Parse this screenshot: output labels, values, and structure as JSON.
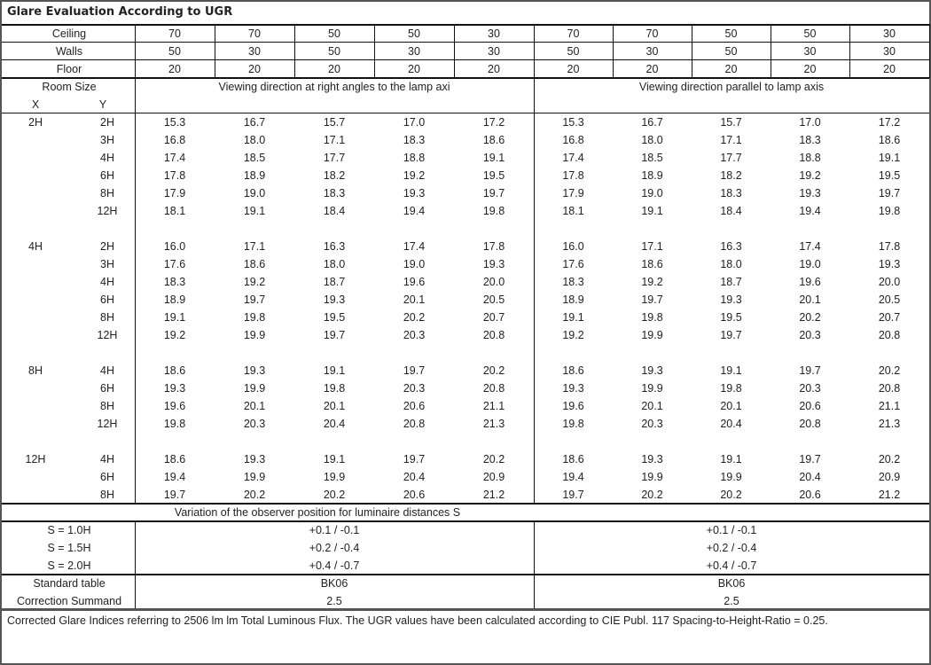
{
  "title": "Glare Evaluation According to UGR",
  "reflectances": [
    {
      "label": "Ceiling",
      "values": [
        "70",
        "70",
        "50",
        "50",
        "30",
        "70",
        "70",
        "50",
        "50",
        "30"
      ]
    },
    {
      "label": "Walls",
      "values": [
        "50",
        "30",
        "50",
        "30",
        "30",
        "50",
        "30",
        "50",
        "30",
        "30"
      ]
    },
    {
      "label": "Floor",
      "values": [
        "20",
        "20",
        "20",
        "20",
        "20",
        "20",
        "20",
        "20",
        "20",
        "20"
      ]
    }
  ],
  "header": {
    "room_size": "Room Size",
    "x": "X",
    "y": "Y",
    "direction_right_angles": "Viewing direction at right angles to the lamp axi",
    "direction_parallel": "Viewing direction parallel to lamp axis"
  },
  "groups": [
    {
      "x": "2H",
      "rows": [
        {
          "y": "2H",
          "values": [
            "15.3",
            "16.7",
            "15.7",
            "17.0",
            "17.2",
            "15.3",
            "16.7",
            "15.7",
            "17.0",
            "17.2"
          ]
        },
        {
          "y": "3H",
          "values": [
            "16.8",
            "18.0",
            "17.1",
            "18.3",
            "18.6",
            "16.8",
            "18.0",
            "17.1",
            "18.3",
            "18.6"
          ]
        },
        {
          "y": "4H",
          "values": [
            "17.4",
            "18.5",
            "17.7",
            "18.8",
            "19.1",
            "17.4",
            "18.5",
            "17.7",
            "18.8",
            "19.1"
          ]
        },
        {
          "y": "6H",
          "values": [
            "17.8",
            "18.9",
            "18.2",
            "19.2",
            "19.5",
            "17.8",
            "18.9",
            "18.2",
            "19.2",
            "19.5"
          ]
        },
        {
          "y": "8H",
          "values": [
            "17.9",
            "19.0",
            "18.3",
            "19.3",
            "19.7",
            "17.9",
            "19.0",
            "18.3",
            "19.3",
            "19.7"
          ]
        },
        {
          "y": "12H",
          "values": [
            "18.1",
            "19.1",
            "18.4",
            "19.4",
            "19.8",
            "18.1",
            "19.1",
            "18.4",
            "19.4",
            "19.8"
          ]
        }
      ]
    },
    {
      "x": "4H",
      "rows": [
        {
          "y": "2H",
          "values": [
            "16.0",
            "17.1",
            "16.3",
            "17.4",
            "17.8",
            "16.0",
            "17.1",
            "16.3",
            "17.4",
            "17.8"
          ]
        },
        {
          "y": "3H",
          "values": [
            "17.6",
            "18.6",
            "18.0",
            "19.0",
            "19.3",
            "17.6",
            "18.6",
            "18.0",
            "19.0",
            "19.3"
          ]
        },
        {
          "y": "4H",
          "values": [
            "18.3",
            "19.2",
            "18.7",
            "19.6",
            "20.0",
            "18.3",
            "19.2",
            "18.7",
            "19.6",
            "20.0"
          ]
        },
        {
          "y": "6H",
          "values": [
            "18.9",
            "19.7",
            "19.3",
            "20.1",
            "20.5",
            "18.9",
            "19.7",
            "19.3",
            "20.1",
            "20.5"
          ]
        },
        {
          "y": "8H",
          "values": [
            "19.1",
            "19.8",
            "19.5",
            "20.2",
            "20.7",
            "19.1",
            "19.8",
            "19.5",
            "20.2",
            "20.7"
          ]
        },
        {
          "y": "12H",
          "values": [
            "19.2",
            "19.9",
            "19.7",
            "20.3",
            "20.8",
            "19.2",
            "19.9",
            "19.7",
            "20.3",
            "20.8"
          ]
        }
      ]
    },
    {
      "x": "8H",
      "rows": [
        {
          "y": "4H",
          "values": [
            "18.6",
            "19.3",
            "19.1",
            "19.7",
            "20.2",
            "18.6",
            "19.3",
            "19.1",
            "19.7",
            "20.2"
          ]
        },
        {
          "y": "6H",
          "values": [
            "19.3",
            "19.9",
            "19.8",
            "20.3",
            "20.8",
            "19.3",
            "19.9",
            "19.8",
            "20.3",
            "20.8"
          ]
        },
        {
          "y": "8H",
          "values": [
            "19.6",
            "20.1",
            "20.1",
            "20.6",
            "21.1",
            "19.6",
            "20.1",
            "20.1",
            "20.6",
            "21.1"
          ]
        },
        {
          "y": "12H",
          "values": [
            "19.8",
            "20.3",
            "20.4",
            "20.8",
            "21.3",
            "19.8",
            "20.3",
            "20.4",
            "20.8",
            "21.3"
          ]
        }
      ]
    },
    {
      "x": "12H",
      "rows": [
        {
          "y": "4H",
          "values": [
            "18.6",
            "19.3",
            "19.1",
            "19.7",
            "20.2",
            "18.6",
            "19.3",
            "19.1",
            "19.7",
            "20.2"
          ]
        },
        {
          "y": "6H",
          "values": [
            "19.4",
            "19.9",
            "19.9",
            "20.4",
            "20.9",
            "19.4",
            "19.9",
            "19.9",
            "20.4",
            "20.9"
          ]
        },
        {
          "y": "8H",
          "values": [
            "19.7",
            "20.2",
            "20.2",
            "20.6",
            "21.2",
            "19.7",
            "20.2",
            "20.2",
            "20.6",
            "21.2"
          ]
        }
      ]
    }
  ],
  "variation": {
    "title": "Variation of the observer position for luminaire distances S",
    "rows": [
      {
        "label": "S = 1.0H",
        "right_angles": "+0.1 / -0.1",
        "parallel": "+0.1 / -0.1"
      },
      {
        "label": "S = 1.5H",
        "right_angles": "+0.2 / -0.4",
        "parallel": "+0.2 / -0.4"
      },
      {
        "label": "S = 2.0H",
        "right_angles": "+0.4 / -0.7",
        "parallel": "+0.4 / -0.7"
      }
    ]
  },
  "standard": [
    {
      "label": "Standard table",
      "right_angles": "BK06",
      "parallel": "BK06"
    },
    {
      "label": "Correction Summand",
      "right_angles": "2.5",
      "parallel": "2.5"
    }
  ],
  "footer": "Corrected Glare Indices referring to 2506 lm lm Total Luminous Flux. The UGR values have been calculated according to CIE Publ. 117    Spacing-to-Height-Ratio = 0.25."
}
